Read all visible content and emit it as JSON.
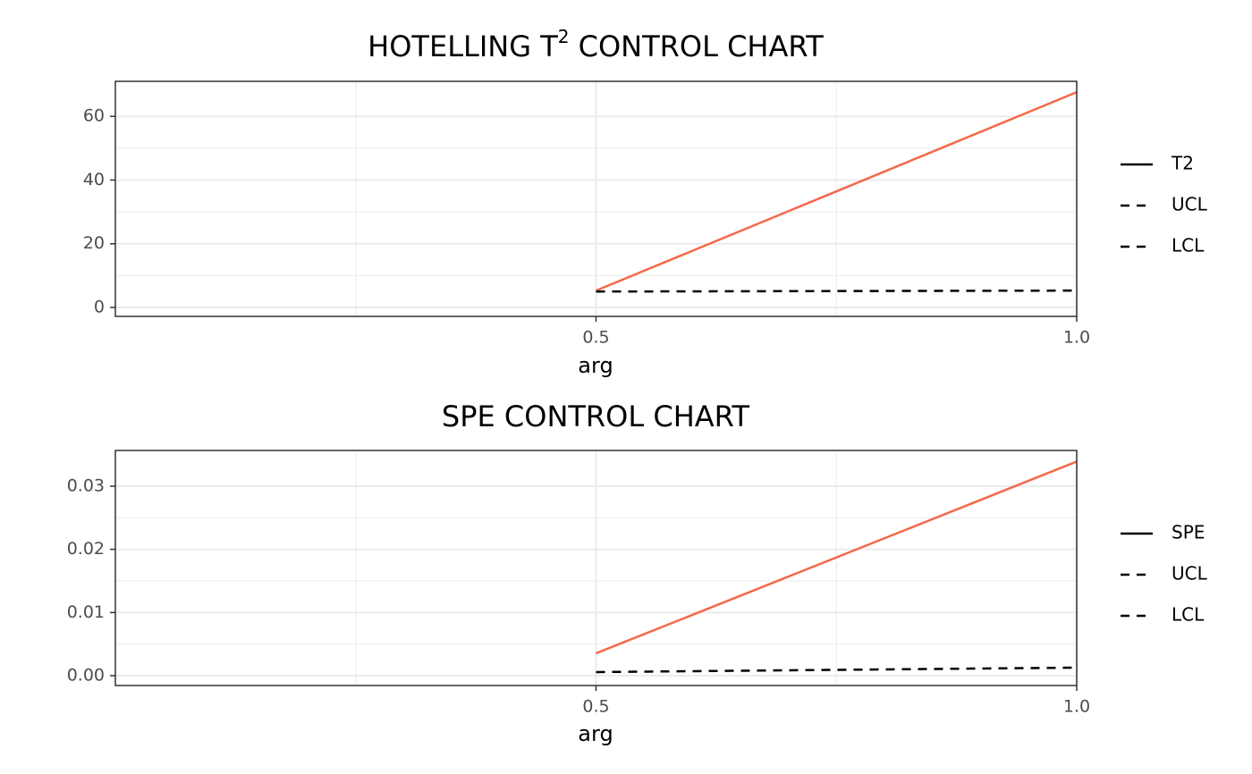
{
  "chart_data": [
    {
      "type": "line",
      "title": [
        "HOTELLING T",
        "2",
        " CONTROL CHART"
      ],
      "x_label": "arg",
      "x": [
        0.5,
        1.0
      ],
      "xlim": [
        0,
        1.0
      ],
      "xticks": [
        0.5,
        {
          "value": 1.0,
          "label": "1.0"
        }
      ],
      "minor_xticks": [
        0.25,
        0.75
      ],
      "ylim": [
        -2.8,
        71
      ],
      "yticks": [
        0,
        20,
        40,
        60
      ],
      "minor_yticks": [
        10,
        30,
        50
      ],
      "grid": true,
      "series": [
        {
          "name": "T2",
          "color": "#f4694a",
          "dashed": false,
          "values": [
            5.3,
            67.6
          ]
        },
        {
          "name": "UCL",
          "color": "#000000",
          "dashed": true,
          "values": [
            5.0,
            5.3
          ]
        },
        {
          "name": "LCL",
          "color": "#000000",
          "dashed": true,
          "values": [
            null,
            null
          ]
        }
      ]
    },
    {
      "type": "line",
      "title": [
        "SPE CONTROL CHART"
      ],
      "x_label": "arg",
      "x": [
        0.5,
        1.0
      ],
      "xlim": [
        0,
        1.0
      ],
      "xticks": [
        0.5,
        {
          "value": 1.0,
          "label": "1.0"
        }
      ],
      "minor_xticks": [
        0.25,
        0.75
      ],
      "ylim": [
        -0.00156,
        0.03566
      ],
      "yticks": [
        {
          "value": 0,
          "label": "0.00"
        },
        0.01,
        0.02,
        0.03
      ],
      "minor_yticks": [
        0.005,
        0.015,
        0.025
      ],
      "grid": true,
      "series": [
        {
          "name": "SPE",
          "color": "#f4694a",
          "dashed": false,
          "values": [
            0.00354,
            0.0339
          ]
        },
        {
          "name": "UCL",
          "color": "#000000",
          "dashed": true,
          "values": [
            0.00057,
            0.00127
          ]
        },
        {
          "name": "LCL",
          "color": "#000000",
          "dashed": true,
          "values": [
            null,
            null
          ]
        }
      ]
    }
  ]
}
